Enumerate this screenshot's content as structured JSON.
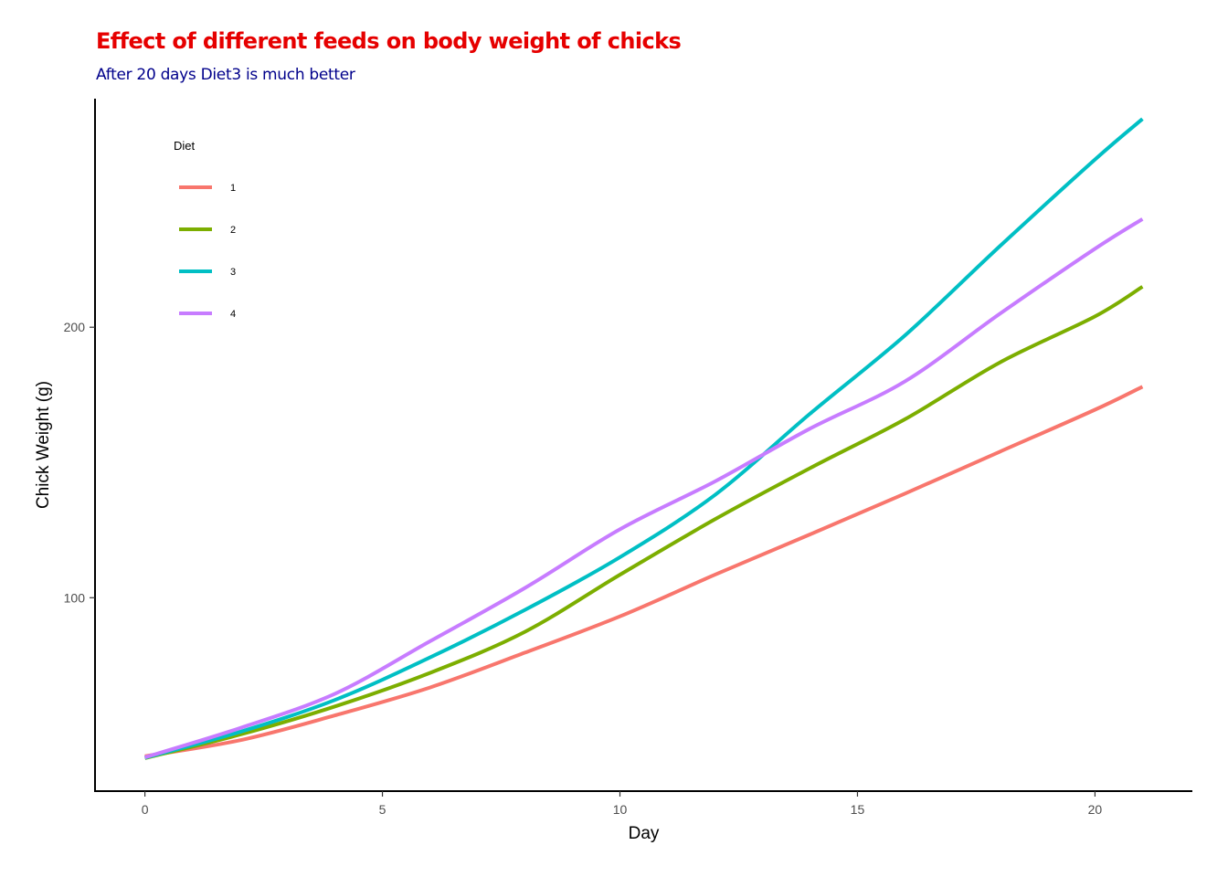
{
  "chart_data": {
    "type": "line",
    "title": "Effect of different feeds on body weight of chicks",
    "subtitle": "After 20 days Diet3 is much better",
    "xlabel": "Day",
    "ylabel": "Chick Weight (g)",
    "xlim": [
      -1.05,
      22.05
    ],
    "ylim": [
      28.5,
      284.5
    ],
    "x_ticks": [
      0,
      5,
      10,
      15,
      20
    ],
    "y_ticks": [
      100,
      200
    ],
    "grid": false,
    "legend": {
      "title": "Diet",
      "position": "top-left-inside"
    },
    "x": [
      0,
      2,
      4,
      6,
      8,
      10,
      12,
      14,
      16,
      18,
      20,
      21
    ],
    "series": [
      {
        "name": "1",
        "color": "#F8766D",
        "values": [
          41.4,
          47.3,
          56.5,
          66.8,
          79.7,
          93.1,
          108.5,
          123.4,
          138.5,
          154.0,
          169.5,
          178.0
        ]
      },
      {
        "name": "2",
        "color": "#7CAE00",
        "values": [
          40.7,
          49.4,
          59.8,
          72.2,
          87.4,
          108.5,
          129.0,
          147.9,
          166.0,
          187.0,
          204.0,
          215.0
        ]
      },
      {
        "name": "3",
        "color": "#00BFC4",
        "values": [
          40.8,
          50.4,
          62.2,
          77.9,
          95.5,
          115.0,
          138.0,
          168.0,
          197.0,
          230.0,
          262.0,
          277.0
        ]
      },
      {
        "name": "4",
        "color": "#C77CFF",
        "values": [
          41.0,
          51.8,
          64.5,
          83.9,
          103.6,
          125.3,
          143.0,
          162.5,
          180.0,
          205.0,
          229.0,
          240.0
        ]
      }
    ]
  }
}
